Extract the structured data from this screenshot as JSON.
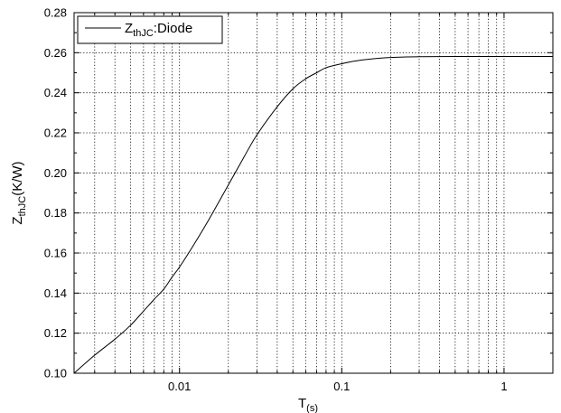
{
  "chart_data": {
    "type": "line",
    "xscale": "log",
    "xlim": [
      0.00224,
      2.0
    ],
    "ylim": [
      0.1,
      0.28
    ],
    "x_ticks": [
      0.01,
      0.1,
      1
    ],
    "x_tick_labels": [
      "0.01",
      "0.1",
      "1"
    ],
    "y_ticks": [
      0.1,
      0.12,
      0.14,
      0.16,
      0.18,
      0.2,
      0.22,
      0.24,
      0.26,
      0.28
    ],
    "y_tick_labels": [
      "0.10",
      "0.12",
      "0.14",
      "0.16",
      "0.18",
      "0.20",
      "0.22",
      "0.24",
      "0.26",
      "0.28"
    ],
    "xlabel": {
      "main": "T",
      "sub": "(s)"
    },
    "ylabel": {
      "main": "Z",
      "sub": "thJC",
      "unit": "(K/W)"
    },
    "grid": true,
    "legend_position": "top-left",
    "series": [
      {
        "legend": {
          "main": "Z",
          "sub": "thJC",
          "suffix": ":Diode"
        },
        "color": "#000000",
        "x": [
          0.00224,
          0.003,
          0.004,
          0.005,
          0.006,
          0.007,
          0.008,
          0.009,
          0.01,
          0.012,
          0.015,
          0.02,
          0.025,
          0.03,
          0.04,
          0.05,
          0.06,
          0.07,
          0.08,
          0.1,
          0.12,
          0.15,
          0.2,
          0.3,
          0.5,
          1.0,
          2.0
        ],
        "y": [
          0.1,
          0.109,
          0.117,
          0.124,
          0.131,
          0.137,
          0.142,
          0.148,
          0.153,
          0.163,
          0.176,
          0.194,
          0.208,
          0.219,
          0.233,
          0.242,
          0.247,
          0.25,
          0.2525,
          0.2545,
          0.2558,
          0.2568,
          0.2576,
          0.258,
          0.2581,
          0.2581,
          0.2581
        ]
      }
    ]
  }
}
